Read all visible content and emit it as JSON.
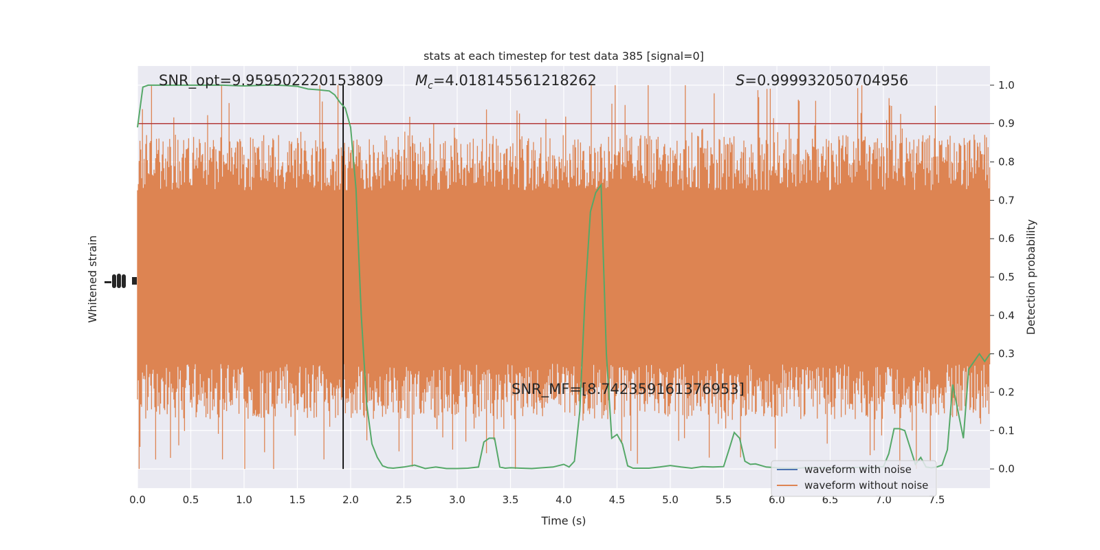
{
  "chart_data": {
    "type": "line",
    "title": "stats at each timestep for test data 385 [signal=0]",
    "xlabel": "Time (s)",
    "ylabel_left": "Whitened strain",
    "ylabel_right": "Detection probability",
    "xlim": [
      0.0,
      8.0
    ],
    "ylim_right": [
      -0.05,
      1.05
    ],
    "x_ticks": [
      "0.0",
      "0.5",
      "1.0",
      "1.5",
      "2.0",
      "2.5",
      "3.0",
      "3.5",
      "4.0",
      "4.5",
      "5.0",
      "5.5",
      "6.0",
      "6.5",
      "7.0",
      "7.5"
    ],
    "x_tick_values": [
      0.0,
      0.5,
      1.0,
      1.5,
      2.0,
      2.5,
      3.0,
      3.5,
      4.0,
      4.5,
      5.0,
      5.5,
      6.0,
      6.5,
      7.0,
      7.5
    ],
    "y_right_ticks": [
      "0.0",
      "0.1",
      "0.2",
      "0.3",
      "0.4",
      "0.5",
      "0.6",
      "0.7",
      "0.8",
      "0.9",
      "1.0"
    ],
    "y_right_tick_values": [
      0.0,
      0.1,
      0.2,
      0.3,
      0.4,
      0.5,
      0.6,
      0.7,
      0.8,
      0.9,
      1.0
    ],
    "grid": true,
    "legend_position": "lower-right",
    "annotations": {
      "snr_opt": "SNR_opt=9.959502220153809",
      "mc_symbol": "M",
      "mc_sub": "c",
      "mc_value": "=4.018145561218262",
      "s_symbol": "S",
      "s_value": "=0.999932050704956",
      "snr_mf": "SNR_MF=[8.742359161376953]"
    },
    "threshold": 0.9,
    "marker_time": 1.93,
    "series": [
      {
        "name": "waveform with noise",
        "color": "#4c72b0",
        "values": []
      },
      {
        "name": "waveform without noise",
        "color": "#dd8452",
        "kind": "noise-band",
        "note_values": "dense noise trace, roughly symmetric about 0.5 on the detection-probability scale"
      },
      {
        "name": "detection probability",
        "color": "#55a868",
        "x": [
          0.0,
          0.05,
          0.1,
          0.2,
          0.3,
          0.4,
          0.5,
          0.6,
          0.7,
          0.8,
          0.9,
          1.0,
          1.1,
          1.2,
          1.3,
          1.4,
          1.5,
          1.6,
          1.7,
          1.8,
          1.85,
          1.9,
          1.95,
          2.0,
          2.05,
          2.1,
          2.15,
          2.2,
          2.25,
          2.3,
          2.35,
          2.4,
          2.5,
          2.6,
          2.7,
          2.8,
          2.9,
          3.0,
          3.1,
          3.2,
          3.25,
          3.3,
          3.35,
          3.4,
          3.45,
          3.5,
          3.6,
          3.7,
          3.8,
          3.9,
          4.0,
          4.05,
          4.1,
          4.15,
          4.2,
          4.25,
          4.3,
          4.35,
          4.4,
          4.45,
          4.5,
          4.55,
          4.6,
          4.65,
          4.7,
          4.8,
          4.9,
          5.0,
          5.1,
          5.2,
          5.3,
          5.4,
          5.5,
          5.55,
          5.6,
          5.65,
          5.7,
          5.75,
          5.8,
          5.9,
          6.0,
          6.1,
          6.2,
          6.3,
          6.4,
          6.5,
          6.6,
          6.7,
          6.8,
          6.9,
          7.0,
          7.05,
          7.1,
          7.15,
          7.2,
          7.3,
          7.35,
          7.4,
          7.45,
          7.5,
          7.55,
          7.6,
          7.65,
          7.7,
          7.75,
          7.8,
          7.85,
          7.9,
          7.95,
          8.0
        ],
        "values": [
          0.89,
          0.995,
          1.0,
          1.0,
          1.0,
          1.0,
          1.0,
          1.0,
          1.0,
          1.0,
          0.999,
          0.998,
          0.999,
          1.0,
          1.0,
          0.999,
          0.997,
          0.99,
          0.988,
          0.985,
          0.975,
          0.955,
          0.94,
          0.89,
          0.73,
          0.4,
          0.17,
          0.065,
          0.03,
          0.008,
          0.003,
          0.002,
          0.005,
          0.01,
          0.001,
          0.005,
          0.001,
          0.001,
          0.002,
          0.005,
          0.07,
          0.08,
          0.08,
          0.005,
          0.002,
          0.003,
          0.002,
          0.001,
          0.003,
          0.005,
          0.012,
          0.005,
          0.02,
          0.15,
          0.45,
          0.67,
          0.72,
          0.74,
          0.3,
          0.08,
          0.09,
          0.065,
          0.008,
          0.002,
          0.002,
          0.002,
          0.005,
          0.009,
          0.005,
          0.002,
          0.006,
          0.005,
          0.006,
          0.05,
          0.095,
          0.08,
          0.02,
          0.012,
          0.013,
          0.005,
          0.003,
          0.002,
          0.002,
          0.004,
          0.003,
          0.003,
          0.002,
          0.004,
          0.004,
          0.003,
          0.006,
          0.04,
          0.105,
          0.105,
          0.1,
          0.012,
          0.03,
          0.005,
          0.003,
          0.005,
          0.01,
          0.05,
          0.22,
          0.15,
          0.08,
          0.26,
          0.28,
          0.3,
          0.28,
          0.3
        ]
      }
    ]
  }
}
